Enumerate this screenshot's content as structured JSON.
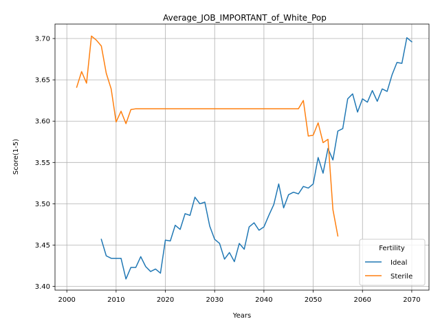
{
  "chart_data": {
    "type": "line",
    "title": "Average_JOB_IMPORTANT_of_White_Pop",
    "xlabel": "Years",
    "ylabel": "Score(1-5)",
    "xlim": [
      1997.6,
      2073.5
    ],
    "ylim": [
      3.3955,
      3.7175
    ],
    "xticks": [
      2000,
      2010,
      2020,
      2030,
      2040,
      2050,
      2060,
      2070
    ],
    "xtick_labels": [
      "2000",
      "2010",
      "2020",
      "2030",
      "2040",
      "2050",
      "2060",
      "2070"
    ],
    "yticks": [
      3.4,
      3.45,
      3.5,
      3.55,
      3.6,
      3.65,
      3.7
    ],
    "ytick_labels": [
      "3.40",
      "3.45",
      "3.50",
      "3.55",
      "3.60",
      "3.65",
      "3.70"
    ],
    "grid": true,
    "legend": {
      "title": "Fertility",
      "position": "lower-right"
    },
    "series": [
      {
        "name": "Ideal",
        "color": "#1f77b4",
        "x": [
          2007,
          2008,
          2009,
          2010,
          2011,
          2012,
          2013,
          2014,
          2015,
          2016,
          2017,
          2018,
          2019,
          2020,
          2021,
          2022,
          2023,
          2024,
          2025,
          2026,
          2027,
          2028,
          2029,
          2030,
          2031,
          2032,
          2033,
          2034,
          2035,
          2036,
          2037,
          2038,
          2039,
          2040,
          2041,
          2042,
          2043,
          2044,
          2045,
          2046,
          2047,
          2048,
          2049,
          2050,
          2051,
          2052,
          2053,
          2054,
          2055,
          2056,
          2057,
          2058,
          2059,
          2060,
          2061,
          2062,
          2063,
          2064,
          2065,
          2066,
          2067,
          2068,
          2069,
          2070
        ],
        "values": [
          3.457,
          3.437,
          3.434,
          3.434,
          3.434,
          3.409,
          3.423,
          3.423,
          3.436,
          3.424,
          3.418,
          3.421,
          3.416,
          3.456,
          3.455,
          3.474,
          3.469,
          3.488,
          3.486,
          3.508,
          3.5,
          3.502,
          3.473,
          3.457,
          3.452,
          3.433,
          3.441,
          3.43,
          3.452,
          3.445,
          3.472,
          3.477,
          3.468,
          3.472,
          3.486,
          3.499,
          3.524,
          3.495,
          3.511,
          3.514,
          3.512,
          3.521,
          3.519,
          3.524,
          3.556,
          3.537,
          3.567,
          3.553,
          3.588,
          3.591,
          3.627,
          3.633,
          3.611,
          3.627,
          3.623,
          3.637,
          3.624,
          3.639,
          3.636,
          3.656,
          3.671,
          3.67,
          3.701,
          3.696
        ]
      },
      {
        "name": "Sterile",
        "color": "#ff7f0e",
        "x": [
          2002,
          2003,
          2004,
          2005,
          2006,
          2007,
          2008,
          2009,
          2010,
          2011,
          2012,
          2013,
          2014,
          2015,
          2016,
          2017,
          2018,
          2019,
          2020,
          2021,
          2022,
          2023,
          2024,
          2025,
          2026,
          2027,
          2028,
          2029,
          2030,
          2031,
          2032,
          2033,
          2034,
          2035,
          2036,
          2037,
          2038,
          2039,
          2040,
          2041,
          2042,
          2043,
          2044,
          2045,
          2046,
          2047,
          2048,
          2049,
          2050,
          2051,
          2052,
          2053,
          2054,
          2055
        ],
        "values": [
          3.641,
          3.66,
          3.646,
          3.703,
          3.698,
          3.691,
          3.658,
          3.639,
          3.599,
          3.612,
          3.597,
          3.614,
          3.615,
          3.615,
          3.615,
          3.615,
          3.615,
          3.615,
          3.615,
          3.615,
          3.615,
          3.615,
          3.615,
          3.615,
          3.615,
          3.615,
          3.615,
          3.615,
          3.615,
          3.615,
          3.615,
          3.615,
          3.615,
          3.615,
          3.615,
          3.615,
          3.615,
          3.615,
          3.615,
          3.615,
          3.615,
          3.615,
          3.615,
          3.615,
          3.615,
          3.615,
          3.625,
          3.582,
          3.583,
          3.598,
          3.574,
          3.578,
          3.493,
          3.461
        ]
      }
    ]
  }
}
